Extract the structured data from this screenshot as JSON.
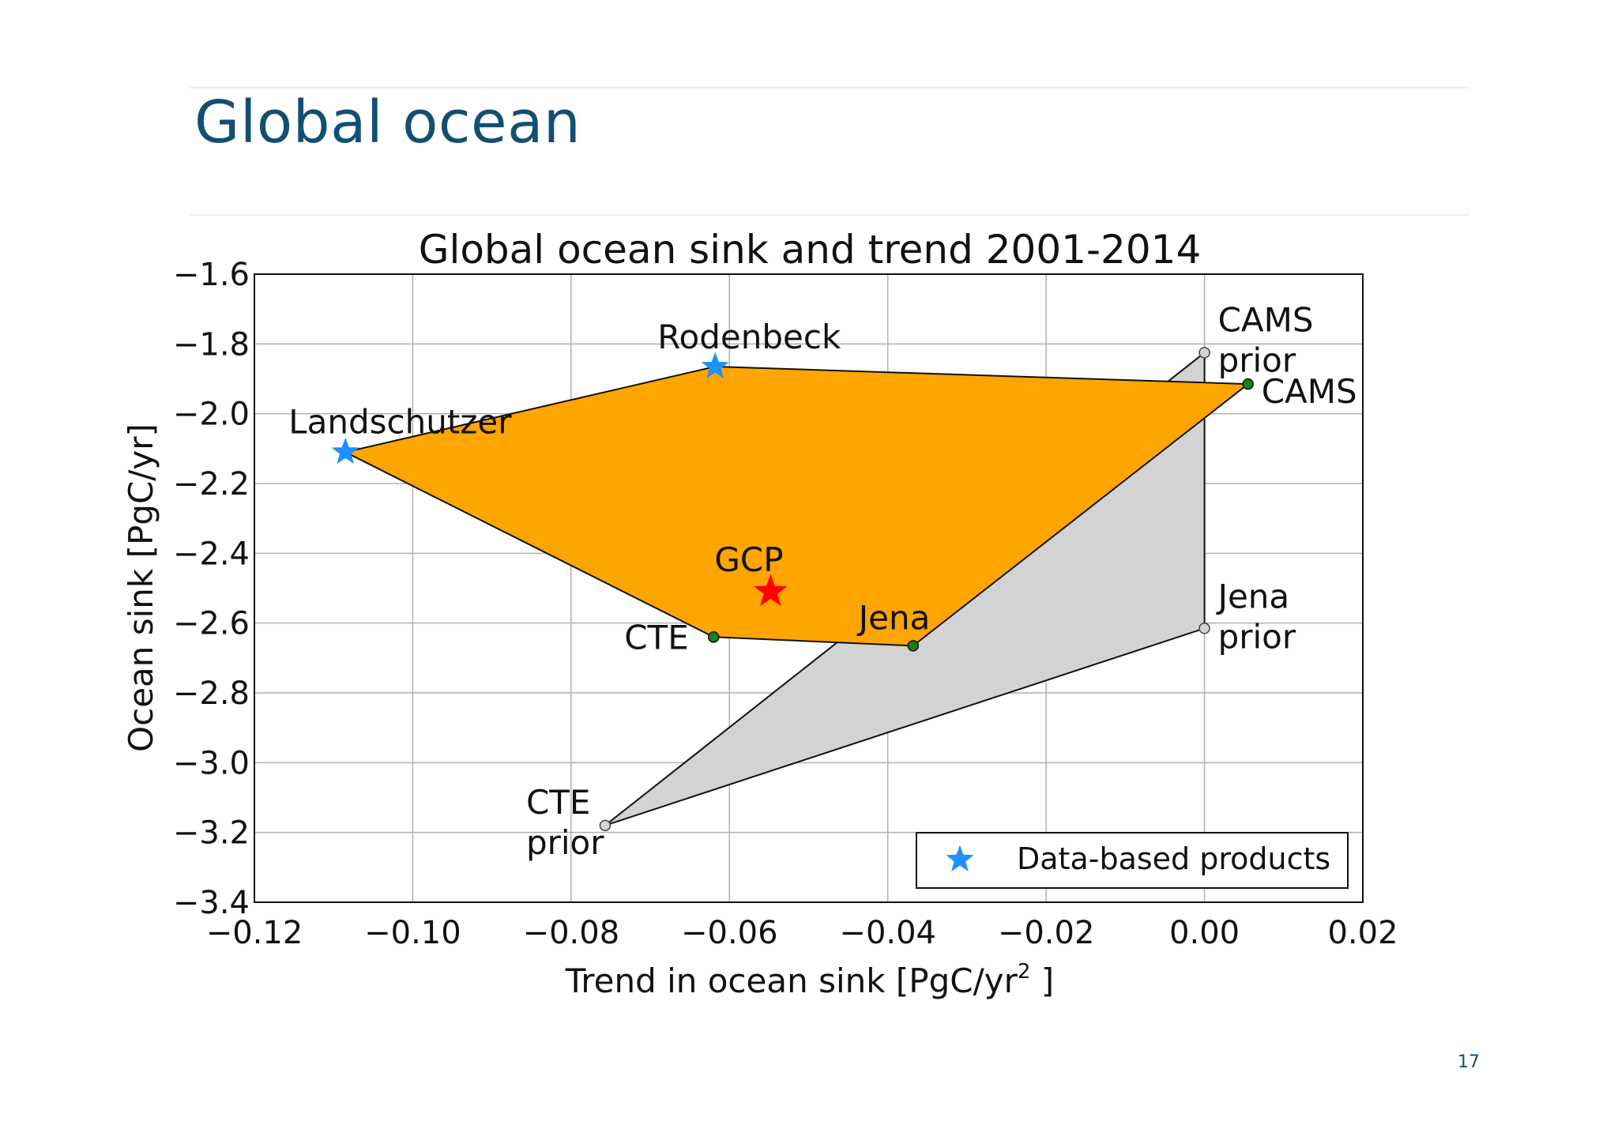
{
  "slide": {
    "title": "Global ocean",
    "page_number": "17"
  },
  "chart_data": {
    "type": "scatter",
    "title": "Global ocean sink and trend 2001-2014",
    "xlabel": "Trend in ocean sink [PgC/yr",
    "xlabel_sup": "2",
    "xlabel_end": " ]",
    "ylabel": "Ocean sink [PgC/yr]",
    "xlim": [
      -0.12,
      0.02
    ],
    "ylim": [
      -3.4,
      -1.6
    ],
    "x_ticks": [
      -0.12,
      -0.1,
      -0.08,
      -0.06,
      -0.04,
      -0.02,
      0.0,
      0.02
    ],
    "x_tick_labels": [
      "−0.12",
      "−0.10",
      "−0.08",
      "−0.06",
      "−0.04",
      "−0.02",
      "0.00",
      "0.02"
    ],
    "y_ticks": [
      -1.6,
      -1.8,
      -2.0,
      -2.2,
      -2.4,
      -2.6,
      -2.8,
      -3.0,
      -3.2,
      -3.4
    ],
    "y_tick_labels": [
      "−1.6",
      "−1.8",
      "−2.0",
      "−2.2",
      "−2.4",
      "−2.6",
      "−2.8",
      "−3.0",
      "−3.2",
      "−3.4"
    ],
    "grid": true,
    "legend": {
      "position": "bottom-right",
      "entries": [
        "Data-based products"
      ]
    },
    "colors": {
      "posterior_polygon": "#ffa500",
      "prior_polygon": "#d3d3d3",
      "data_based_star": "#1e90ff",
      "gcp_star": "#ff0000",
      "inversion_point": "#1a7f1a",
      "prior_point": "#d3d3d3"
    },
    "points": [
      {
        "label": "Landschutzer",
        "x": -0.1085,
        "y": -2.11,
        "kind": "data-based"
      },
      {
        "label": "Rodenbeck",
        "x": -0.0618,
        "y": -1.865,
        "kind": "data-based"
      },
      {
        "label": "GCP",
        "x": -0.0548,
        "y": -2.51,
        "kind": "gcp"
      },
      {
        "label": "CTE",
        "x": -0.062,
        "y": -2.64,
        "kind": "inversion"
      },
      {
        "label": "Jena",
        "x": -0.0368,
        "y": -2.665,
        "kind": "inversion"
      },
      {
        "label": "CAMS",
        "x": 0.0055,
        "y": -1.915,
        "kind": "inversion"
      },
      {
        "label": "CAMS\nprior",
        "x": 0.0,
        "y": -1.825,
        "kind": "prior"
      },
      {
        "label": "Jena\nprior",
        "x": 0.0,
        "y": -2.615,
        "kind": "prior"
      },
      {
        "label": "CTE\nprior",
        "x": -0.0757,
        "y": -3.18,
        "kind": "prior"
      }
    ],
    "polygons": [
      {
        "name": "prior envelope",
        "vertices": [
          "CTE\nprior",
          "CAMS\nprior",
          "Jena\nprior"
        ],
        "color_key": "prior_polygon"
      },
      {
        "name": "posterior envelope",
        "vertices": [
          "Landschutzer",
          "Rodenbeck",
          "CAMS",
          "Jena",
          "CTE"
        ],
        "color_key": "posterior_polygon"
      }
    ]
  }
}
